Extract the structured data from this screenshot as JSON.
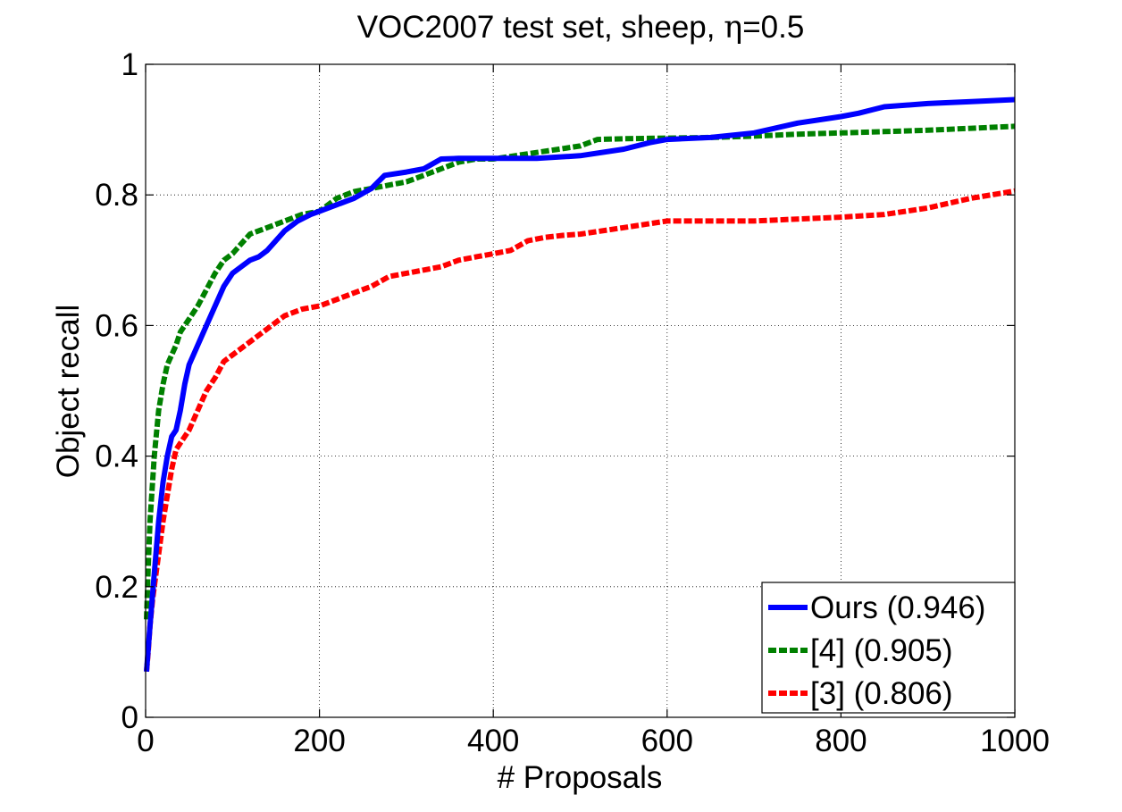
{
  "chart_data": {
    "type": "line",
    "title_main": "VOC2007 test set, sheep, ",
    "title_symbol": "η",
    "title_tail": "=0.5",
    "xlabel": "# Proposals",
    "ylabel": "Object recall",
    "xlim": [
      0,
      1000
    ],
    "ylim": [
      0,
      1
    ],
    "xticks": [
      0,
      200,
      400,
      600,
      800,
      1000
    ],
    "yticks": [
      0,
      0.2,
      0.4,
      0.6,
      0.8,
      1
    ],
    "xtick_labels": [
      "0",
      "200",
      "400",
      "600",
      "800",
      "1000"
    ],
    "ytick_labels": [
      "0",
      "0.2",
      "0.4",
      "0.6",
      "0.8",
      "1"
    ],
    "grid": true,
    "legend_position": "bottom-right",
    "series": [
      {
        "name": "Ours (0.946)",
        "color": "#0000ff",
        "dash": "solid",
        "x": [
          1,
          5,
          10,
          15,
          20,
          25,
          30,
          35,
          40,
          45,
          50,
          60,
          70,
          80,
          90,
          100,
          110,
          120,
          130,
          140,
          150,
          160,
          175,
          190,
          200,
          220,
          240,
          260,
          275,
          300,
          320,
          340,
          360,
          380,
          400,
          450,
          500,
          550,
          580,
          600,
          650,
          700,
          750,
          800,
          820,
          850,
          900,
          950,
          1000
        ],
        "y": [
          0.07,
          0.14,
          0.22,
          0.3,
          0.36,
          0.4,
          0.43,
          0.44,
          0.47,
          0.51,
          0.54,
          0.57,
          0.6,
          0.63,
          0.66,
          0.68,
          0.69,
          0.7,
          0.705,
          0.715,
          0.73,
          0.745,
          0.76,
          0.77,
          0.775,
          0.785,
          0.795,
          0.81,
          0.83,
          0.835,
          0.84,
          0.855,
          0.856,
          0.856,
          0.856,
          0.856,
          0.86,
          0.87,
          0.88,
          0.885,
          0.888,
          0.895,
          0.91,
          0.92,
          0.925,
          0.935,
          0.94,
          0.943,
          0.946
        ]
      },
      {
        "name": "[4] (0.905)",
        "color": "#008000",
        "dash": "dashed",
        "x": [
          1,
          3,
          5,
          8,
          10,
          15,
          20,
          25,
          30,
          35,
          40,
          50,
          60,
          70,
          80,
          90,
          100,
          110,
          120,
          140,
          160,
          180,
          200,
          220,
          240,
          260,
          280,
          300,
          320,
          340,
          360,
          380,
          400,
          450,
          500,
          520,
          550,
          600,
          650,
          700,
          750,
          800,
          850,
          900,
          950,
          1000
        ],
        "y": [
          0.15,
          0.23,
          0.3,
          0.36,
          0.4,
          0.47,
          0.51,
          0.54,
          0.555,
          0.57,
          0.59,
          0.61,
          0.63,
          0.655,
          0.68,
          0.7,
          0.71,
          0.725,
          0.74,
          0.75,
          0.76,
          0.77,
          0.775,
          0.795,
          0.805,
          0.81,
          0.815,
          0.82,
          0.83,
          0.84,
          0.85,
          0.855,
          0.855,
          0.865,
          0.875,
          0.885,
          0.886,
          0.887,
          0.888,
          0.89,
          0.893,
          0.895,
          0.897,
          0.899,
          0.902,
          0.905
        ]
      },
      {
        "name": "[3] (0.806)",
        "color": "#ff0000",
        "dash": "dashed",
        "x": [
          1,
          3,
          5,
          8,
          10,
          15,
          20,
          25,
          30,
          35,
          40,
          50,
          60,
          70,
          80,
          90,
          100,
          120,
          140,
          160,
          180,
          200,
          220,
          240,
          260,
          280,
          300,
          320,
          340,
          360,
          380,
          400,
          420,
          440,
          460,
          480,
          500,
          550,
          600,
          650,
          700,
          750,
          800,
          850,
          900,
          950,
          1000
        ],
        "y": [
          0.07,
          0.1,
          0.14,
          0.18,
          0.2,
          0.25,
          0.3,
          0.34,
          0.38,
          0.41,
          0.42,
          0.44,
          0.47,
          0.5,
          0.52,
          0.545,
          0.555,
          0.575,
          0.595,
          0.615,
          0.625,
          0.63,
          0.64,
          0.65,
          0.66,
          0.675,
          0.68,
          0.685,
          0.69,
          0.7,
          0.705,
          0.71,
          0.715,
          0.73,
          0.735,
          0.738,
          0.74,
          0.75,
          0.76,
          0.76,
          0.76,
          0.763,
          0.766,
          0.77,
          0.78,
          0.795,
          0.806
        ]
      }
    ]
  }
}
